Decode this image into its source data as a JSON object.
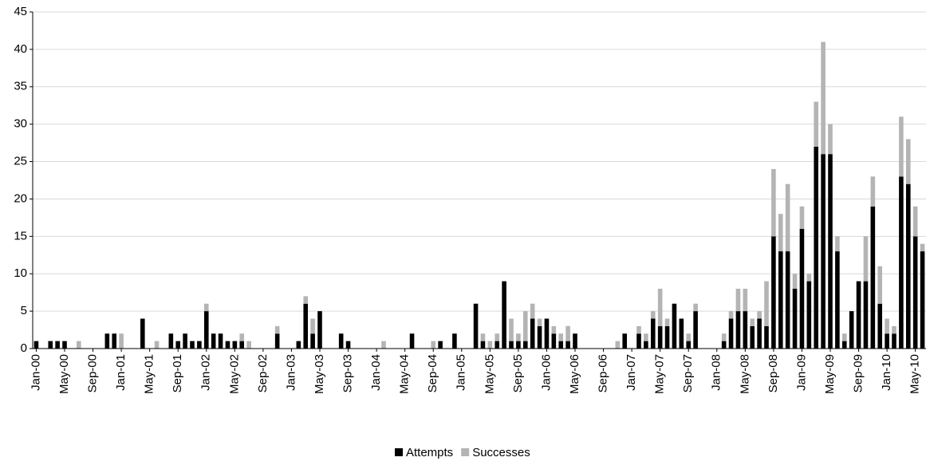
{
  "chart_data": {
    "type": "stacked_bar",
    "categories": [
      "Jan-00",
      null,
      null,
      null,
      "May-00",
      null,
      null,
      null,
      "Sep-00",
      null,
      null,
      null,
      "Jan-01",
      null,
      null,
      null,
      "May-01",
      null,
      null,
      null,
      "Sep-01",
      null,
      null,
      null,
      "Jan-02",
      null,
      null,
      null,
      "May-02",
      null,
      null,
      null,
      "Sep-02",
      null,
      null,
      null,
      "Jan-03",
      null,
      null,
      null,
      "May-03",
      null,
      null,
      null,
      "Sep-03",
      null,
      null,
      null,
      "Jan-04",
      null,
      null,
      null,
      "May-04",
      null,
      null,
      null,
      "Sep-04",
      null,
      null,
      null,
      "Jan-05",
      null,
      null,
      null,
      "May-05",
      null,
      null,
      null,
      "Sep-05",
      null,
      null,
      null,
      "Jan-06",
      null,
      null,
      null,
      "May-06",
      null,
      null,
      null,
      "Sep-06",
      null,
      null,
      null,
      "Jan-07",
      null,
      null,
      null,
      "May-07",
      null,
      null,
      null,
      "Sep-07",
      null,
      null,
      null,
      "Jan-08",
      null,
      null,
      null,
      "May-08",
      null,
      null,
      null,
      "Sep-08",
      null,
      null,
      null,
      "Jan-09",
      null,
      null,
      null,
      "May-09",
      null,
      null,
      null,
      "Sep-09",
      null,
      null,
      null,
      "Jan-10",
      null,
      null,
      null,
      "May-10",
      null
    ],
    "series": [
      {
        "name": "Attempts",
        "color": "#000000",
        "values": [
          1,
          0,
          1,
          1,
          1,
          0,
          0,
          0,
          0,
          0,
          2,
          2,
          0,
          0,
          0,
          4,
          0,
          0,
          0,
          2,
          1,
          2,
          1,
          1,
          5,
          2,
          2,
          1,
          1,
          1,
          0,
          0,
          0,
          0,
          2,
          0,
          0,
          1,
          6,
          2,
          5,
          0,
          0,
          2,
          1,
          0,
          0,
          0,
          0,
          0,
          0,
          0,
          0,
          2,
          0,
          0,
          0,
          1,
          0,
          2,
          0,
          0,
          6,
          1,
          0,
          1,
          9,
          1,
          1,
          1,
          4,
          3,
          4,
          2,
          1,
          1,
          2,
          0,
          0,
          0,
          0,
          0,
          0,
          2,
          0,
          2,
          1,
          4,
          3,
          3,
          6,
          4,
          1,
          5,
          0,
          0,
          0,
          1,
          4,
          5,
          5,
          3,
          4,
          3,
          15,
          13,
          13,
          8,
          16,
          9,
          27,
          26,
          26,
          13,
          1,
          5,
          9,
          9,
          19,
          6,
          2,
          2,
          23,
          22,
          15,
          13
        ]
      },
      {
        "name": "Successes",
        "color": "#b4b4b4",
        "values": [
          0,
          0,
          0,
          0,
          0,
          0,
          1,
          0,
          0,
          0,
          0,
          0,
          2,
          0,
          0,
          0,
          0,
          1,
          0,
          0,
          0,
          0,
          0,
          0,
          1,
          0,
          0,
          0,
          0,
          1,
          1,
          0,
          0,
          0,
          1,
          0,
          0,
          0,
          1,
          2,
          0,
          0,
          0,
          0,
          0,
          0,
          0,
          0,
          0,
          1,
          0,
          0,
          0,
          0,
          0,
          0,
          1,
          0,
          0,
          0,
          0,
          0,
          0,
          1,
          1,
          1,
          0,
          3,
          1,
          4,
          2,
          1,
          0,
          1,
          1,
          2,
          0,
          0,
          0,
          0,
          0,
          0,
          1,
          0,
          0,
          1,
          1,
          1,
          5,
          1,
          0,
          0,
          1,
          1,
          0,
          0,
          0,
          1,
          1,
          3,
          3,
          1,
          1,
          6,
          9,
          5,
          9,
          2,
          3,
          1,
          6,
          15,
          4,
          2,
          1,
          0,
          0,
          6,
          4,
          5,
          2,
          1,
          8,
          6,
          4,
          1
        ]
      }
    ],
    "ylim": [
      0,
      45
    ],
    "yticks": [
      0,
      5,
      10,
      15,
      20,
      25,
      30,
      35,
      40,
      45
    ],
    "grid": true,
    "legend": "bottom"
  }
}
